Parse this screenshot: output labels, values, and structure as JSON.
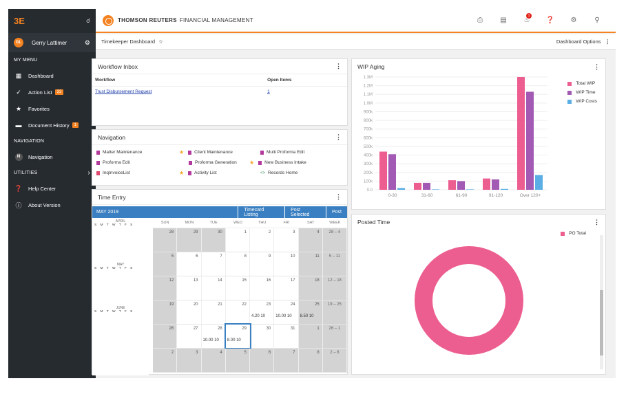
{
  "app": {
    "logo": "3E",
    "brand": "THOMSON REUTERS",
    "brand_sub": "FINANCIAL MANAGEMENT"
  },
  "user": {
    "initials": "GL",
    "name": "Gerry Lattimer"
  },
  "sidebar": {
    "my_menu": "MY MENU",
    "items": [
      {
        "label": "Dashboard",
        "icon": "grid-icon"
      },
      {
        "label": "Action List",
        "icon": "check-icon",
        "badge": "33"
      },
      {
        "label": "Favorites",
        "icon": "star-icon"
      },
      {
        "label": "Document History",
        "icon": "folder-icon",
        "badge": "1"
      }
    ],
    "navigation_section": "NAVIGATION",
    "navigation_item": {
      "label": "Navigation",
      "avatar": "N"
    },
    "utilities_section": "UTILITIES",
    "utilities": [
      {
        "label": "Help Center",
        "icon": "help-icon"
      },
      {
        "label": "About Version",
        "icon": "info-icon"
      }
    ]
  },
  "header": {
    "notifications": "1"
  },
  "subbar": {
    "title": "Timekeeper Dashboard",
    "options": "Dashboard Options"
  },
  "workflow": {
    "title": "Workflow Inbox",
    "col_workflow": "Workflow",
    "col_open": "Open Items",
    "row_name": "Trust Disbursement Request",
    "row_count": "1"
  },
  "navigation": {
    "title": "Navigation",
    "items": [
      "Matter Maintenance",
      "Client Maintenance",
      "Multi Proforma Edit",
      "Proforma Edit",
      "Proforma Generation",
      "New Business Intake",
      "InqInvoiceList",
      "Activity List",
      "Records Home"
    ]
  },
  "time_entry": {
    "title": "Time Entry",
    "month": "MAY 2019",
    "buttons": [
      "Timecard Listing",
      "Post Selected",
      "Post"
    ],
    "day_headers": [
      "SUN",
      "MON",
      "TUE",
      "WED",
      "THU",
      "FRI",
      "SAT",
      "WEEK"
    ],
    "mini_months": [
      "APRIL",
      "MAY",
      "JUNE"
    ],
    "mini_dow": "S M T W T F S",
    "weeks": [
      [
        "28",
        "29",
        "30",
        "1",
        "2",
        "3",
        "4",
        "28 – 4"
      ],
      [
        "5",
        "6",
        "7",
        "8",
        "9",
        "10",
        "11",
        "5 – 11"
      ],
      [
        "12",
        "13",
        "14",
        "15",
        "16",
        "17",
        "18",
        "12 – 18"
      ],
      [
        "19",
        "20",
        "21",
        "22",
        "23",
        "24",
        "25",
        "19 – 25"
      ],
      [
        "26",
        "27",
        "28",
        "29",
        "30",
        "31",
        "1",
        "26 – 1"
      ],
      [
        "2",
        "3",
        "4",
        "5",
        "6",
        "7",
        "8",
        "2 – 8"
      ]
    ],
    "amounts": {
      "r3_thu": "4.20 10",
      "r3_fri": "10.00 10",
      "r3_sat": "8.50 10",
      "r4_tue": "10.00 10",
      "r4_wed": "8.00 10"
    }
  },
  "colors": {
    "accent": "#f58220",
    "blue": "#3a7fc1",
    "total_wip": "#ec5e8f",
    "wip_time": "#a25ab5",
    "wip_costs": "#5aaee5"
  },
  "chart_data": [
    {
      "type": "bar",
      "title": "WIP Aging",
      "categories": [
        "0-30",
        "31-60",
        "61-90",
        "91-120",
        "Over 120+"
      ],
      "series": [
        {
          "name": "Total WIP",
          "values": [
            440000,
            80000,
            110000,
            130000,
            1300000
          ]
        },
        {
          "name": "WIP Time",
          "values": [
            410000,
            80000,
            100000,
            120000,
            1130000
          ]
        },
        {
          "name": "WIP Costs",
          "values": [
            20000,
            5000,
            5000,
            10000,
            170000
          ]
        }
      ],
      "ylim": [
        0,
        1300000
      ],
      "yticks": [
        "0.0",
        "100k",
        "200k",
        "300k",
        "400k",
        "500k",
        "600k",
        "700k",
        "800k",
        "900k",
        "1.0M",
        "1.1M",
        "1.2M",
        "1.3M"
      ]
    },
    {
      "type": "pie",
      "title": "Posted Time",
      "series": [
        {
          "name": "PO Total",
          "values": [
            100
          ]
        }
      ]
    }
  ]
}
